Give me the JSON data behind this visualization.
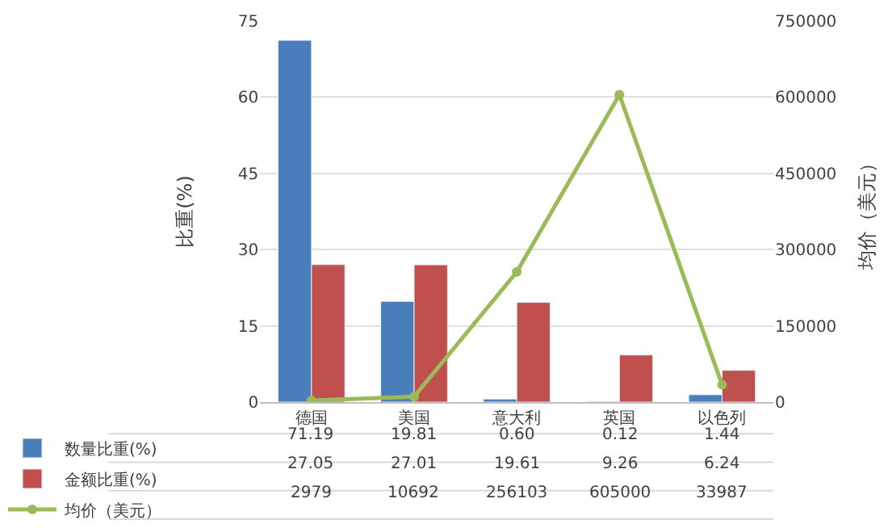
{
  "chart_data": {
    "type": "bar",
    "ylabel": "比重(%)",
    "y2label": "均价（美元）",
    "categories": [
      "德国",
      "美国",
      "意大利",
      "英国",
      "以色列"
    ],
    "series": [
      {
        "name": "数量比重(%)",
        "color": "#4a7ebb",
        "values": [
          71.19,
          19.81,
          0.6,
          0.12,
          1.44
        ],
        "value_labels": [
          "71.19",
          "19.81",
          "0.60",
          "0.12",
          "1.44"
        ]
      },
      {
        "name": "金额比重(%)",
        "color": "#c0504d",
        "values": [
          27.05,
          27.01,
          19.61,
          9.26,
          6.24
        ],
        "value_labels": [
          "27.05",
          "27.01",
          "19.61",
          "9.26",
          "6.24"
        ]
      },
      {
        "name": "均价（美元）",
        "type": "line",
        "axis": "y2",
        "color": "#9bbb59",
        "marker": "circle",
        "values": [
          2979,
          10692,
          256103,
          605000,
          33987
        ],
        "value_labels": [
          "2979",
          "10692",
          "256103",
          "605000",
          "33987"
        ]
      }
    ],
    "ylim": [
      0,
      75
    ],
    "yticks": [
      0,
      15,
      30,
      45,
      60,
      75
    ],
    "y2lim": [
      0,
      750000
    ],
    "y2ticks": [
      0,
      150000,
      300000,
      450000,
      600000,
      750000
    ],
    "grid": "y",
    "legend": "bottom left"
  }
}
